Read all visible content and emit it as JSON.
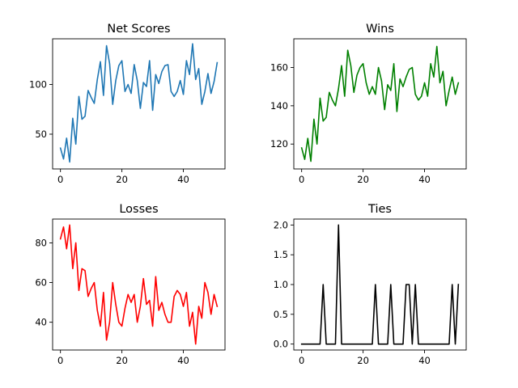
{
  "chart_data": [
    {
      "type": "line",
      "title": "Net Scores",
      "color": "#1f77b4",
      "xlim": [
        -2.55,
        53.55
      ],
      "ylim": [
        15,
        146
      ],
      "xticks": [
        0,
        20,
        40
      ],
      "yticks": [
        50,
        100
      ],
      "x": [
        0,
        1,
        2,
        3,
        4,
        5,
        6,
        7,
        8,
        9,
        10,
        11,
        12,
        13,
        14,
        15,
        16,
        17,
        18,
        19,
        20,
        21,
        22,
        23,
        24,
        25,
        26,
        27,
        28,
        29,
        30,
        31,
        32,
        33,
        34,
        35,
        36,
        37,
        38,
        39,
        40,
        41,
        42,
        43,
        44,
        45,
        46,
        47,
        48,
        49,
        50,
        51
      ],
      "values": [
        36,
        25,
        46,
        22,
        66,
        40,
        88,
        65,
        68,
        94,
        87,
        81,
        105,
        123,
        89,
        139,
        121,
        80,
        104,
        119,
        124,
        93,
        100,
        91,
        120,
        104,
        76,
        102,
        98,
        124,
        74,
        110,
        101,
        113,
        119,
        120,
        93,
        88,
        93,
        104,
        90,
        124,
        110,
        141,
        105,
        116,
        80,
        93,
        111,
        91,
        103,
        122
      ]
    },
    {
      "type": "line",
      "title": "Wins",
      "color": "#008000",
      "xlim": [
        -2.55,
        53.55
      ],
      "ylim": [
        107,
        175
      ],
      "xticks": [
        0,
        20,
        40
      ],
      "yticks": [
        120,
        140,
        160
      ],
      "x": [
        0,
        1,
        2,
        3,
        4,
        5,
        6,
        7,
        8,
        9,
        10,
        11,
        12,
        13,
        14,
        15,
        16,
        17,
        18,
        19,
        20,
        21,
        22,
        23,
        24,
        25,
        26,
        27,
        28,
        29,
        30,
        31,
        32,
        33,
        34,
        35,
        36,
        37,
        38,
        39,
        40,
        41,
        42,
        43,
        44,
        45,
        46,
        47,
        48,
        49,
        50,
        51
      ],
      "values": [
        118,
        112,
        123,
        111,
        133,
        120,
        144,
        132,
        134,
        147,
        143,
        140,
        149,
        161,
        145,
        169,
        161,
        147,
        156,
        160,
        162,
        152,
        146,
        150,
        146,
        160,
        153,
        138,
        151,
        148,
        162,
        137,
        154,
        150,
        155,
        159,
        160,
        146,
        143,
        145,
        152,
        145,
        162,
        155,
        171,
        152,
        158,
        140,
        148,
        155,
        146,
        152
      ]
    },
    {
      "type": "line",
      "title": "Losses",
      "color": "#ff0000",
      "xlim": [
        -2.55,
        53.55
      ],
      "ylim": [
        26,
        92
      ],
      "xticks": [
        0,
        20,
        40
      ],
      "yticks": [
        40,
        60,
        80
      ],
      "x": [
        0,
        1,
        2,
        3,
        4,
        5,
        6,
        7,
        8,
        9,
        10,
        11,
        12,
        13,
        14,
        15,
        16,
        17,
        18,
        19,
        20,
        21,
        22,
        23,
        24,
        25,
        26,
        27,
        28,
        29,
        30,
        31,
        32,
        33,
        34,
        35,
        36,
        37,
        38,
        39,
        40,
        41,
        42,
        43,
        44,
        45,
        46,
        47,
        48,
        49,
        50,
        51
      ],
      "values": [
        82,
        88,
        77,
        89,
        67,
        80,
        56,
        67,
        66,
        53,
        57,
        60,
        46,
        38,
        55,
        31,
        40,
        60,
        49,
        40,
        38,
        47,
        54,
        50,
        54,
        40,
        48,
        62,
        49,
        51,
        38,
        63,
        46,
        50,
        44,
        40,
        40,
        53,
        56,
        54,
        48,
        55,
        38,
        45,
        29,
        48,
        42,
        60,
        55,
        44,
        54,
        48
      ]
    },
    {
      "type": "line",
      "title": "Ties",
      "color": "#000000",
      "xlim": [
        -2.55,
        53.55
      ],
      "ylim": [
        -0.1,
        2.1
      ],
      "xticks": [
        0,
        20,
        40
      ],
      "yticks": [
        0.0,
        0.5,
        1.0,
        1.5,
        2.0
      ],
      "x": [
        0,
        1,
        2,
        3,
        4,
        5,
        6,
        7,
        8,
        9,
        10,
        11,
        12,
        13,
        14,
        15,
        16,
        17,
        18,
        19,
        20,
        21,
        22,
        23,
        24,
        25,
        26,
        27,
        28,
        29,
        30,
        31,
        32,
        33,
        34,
        35,
        36,
        37,
        38,
        39,
        40,
        41,
        42,
        43,
        44,
        45,
        46,
        47,
        48,
        49,
        50,
        51
      ],
      "values": [
        0,
        0,
        0,
        0,
        0,
        0,
        0,
        1,
        0,
        0,
        0,
        0,
        2,
        0,
        0,
        0,
        0,
        0,
        0,
        0,
        0,
        0,
        0,
        0,
        1,
        0,
        0,
        0,
        0,
        1,
        0,
        0,
        0,
        0,
        1,
        1,
        0,
        1,
        0,
        0,
        0,
        0,
        0,
        0,
        0,
        0,
        0,
        0,
        0,
        1,
        0,
        1
      ]
    }
  ]
}
